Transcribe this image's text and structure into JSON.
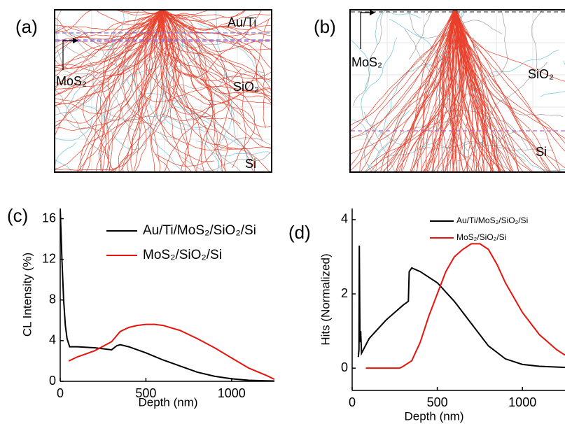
{
  "images": [
    {
      "label": "(a)",
      "annotations": [
        "Au/Ti",
        "MoS₂",
        "SiO₂",
        "Si"
      ]
    },
    {
      "label": "(b)",
      "annotations": [
        "MoS₂",
        "SiO₂",
        "Si"
      ]
    }
  ],
  "chart_data": [
    {
      "type": "line",
      "label": "(c)",
      "x_label": "Depth (nm)",
      "y_label": "CL Intensity (%)",
      "xlim": [
        0,
        1250
      ],
      "xticks": [
        0,
        500,
        1000
      ],
      "ylim": [
        0,
        17
      ],
      "yticks": [
        0,
        4,
        8,
        12,
        16
      ],
      "series": [
        {
          "name": "Au/Ti/MoS₂/SiO₂/Si",
          "color": "#000000",
          "x": [
            0,
            10,
            20,
            30,
            40,
            55,
            100,
            200,
            300,
            330,
            350,
            400,
            500,
            600,
            700,
            800,
            900,
            1000,
            1100,
            1200,
            1250
          ],
          "values": [
            17,
            12,
            8,
            5.5,
            4.2,
            3.4,
            3.4,
            3.3,
            3.1,
            3.5,
            3.6,
            3.4,
            2.8,
            2.1,
            1.5,
            0.9,
            0.5,
            0.25,
            0.1,
            0.05,
            0.03
          ]
        },
        {
          "name": "MoS₂/SiO₂/Si",
          "color": "#e8140c",
          "x": [
            50,
            100,
            200,
            300,
            320,
            350,
            400,
            450,
            500,
            550,
            600,
            700,
            800,
            900,
            1000,
            1100,
            1200,
            1250
          ],
          "values": [
            2.0,
            2.4,
            3.0,
            3.9,
            4.3,
            4.9,
            5.3,
            5.5,
            5.6,
            5.6,
            5.5,
            5.0,
            4.2,
            3.3,
            2.3,
            1.3,
            0.6,
            0.2
          ]
        }
      ]
    },
    {
      "type": "line",
      "label": "(d)",
      "x_label": "Depth (nm)",
      "y_label": "Hits (Normalized)",
      "xlim": [
        0,
        1250
      ],
      "xticks": [
        0,
        500,
        1000
      ],
      "ylim": [
        -0.6,
        4.3
      ],
      "yticks": [
        0,
        2,
        4
      ],
      "series": [
        {
          "name": "Au/Ti/MoS₂/SiO₂/Si",
          "color": "#000000",
          "x": [
            36,
            40,
            42,
            46,
            50,
            55,
            100,
            200,
            300,
            330,
            335,
            350,
            400,
            500,
            600,
            700,
            800,
            900,
            1000,
            1100,
            1250
          ],
          "values": [
            0.3,
            0.5,
            3.3,
            0.7,
            1.0,
            0.4,
            0.8,
            1.3,
            1.7,
            1.8,
            2.6,
            2.7,
            2.6,
            2.3,
            1.8,
            1.2,
            0.6,
            0.25,
            0.1,
            0.05,
            0.02
          ]
        },
        {
          "name": "MoS₂/SiO₂/Si",
          "color": "#e8140c",
          "x": [
            80,
            280,
            300,
            350,
            400,
            450,
            500,
            550,
            600,
            650,
            700,
            750,
            800,
            850,
            900,
            1000,
            1100,
            1200,
            1250
          ],
          "values": [
            0,
            0,
            0.05,
            0.2,
            0.7,
            1.4,
            2.0,
            2.6,
            3.0,
            3.2,
            3.35,
            3.35,
            3.2,
            2.8,
            2.3,
            1.5,
            0.9,
            0.5,
            0.35
          ]
        }
      ]
    }
  ]
}
